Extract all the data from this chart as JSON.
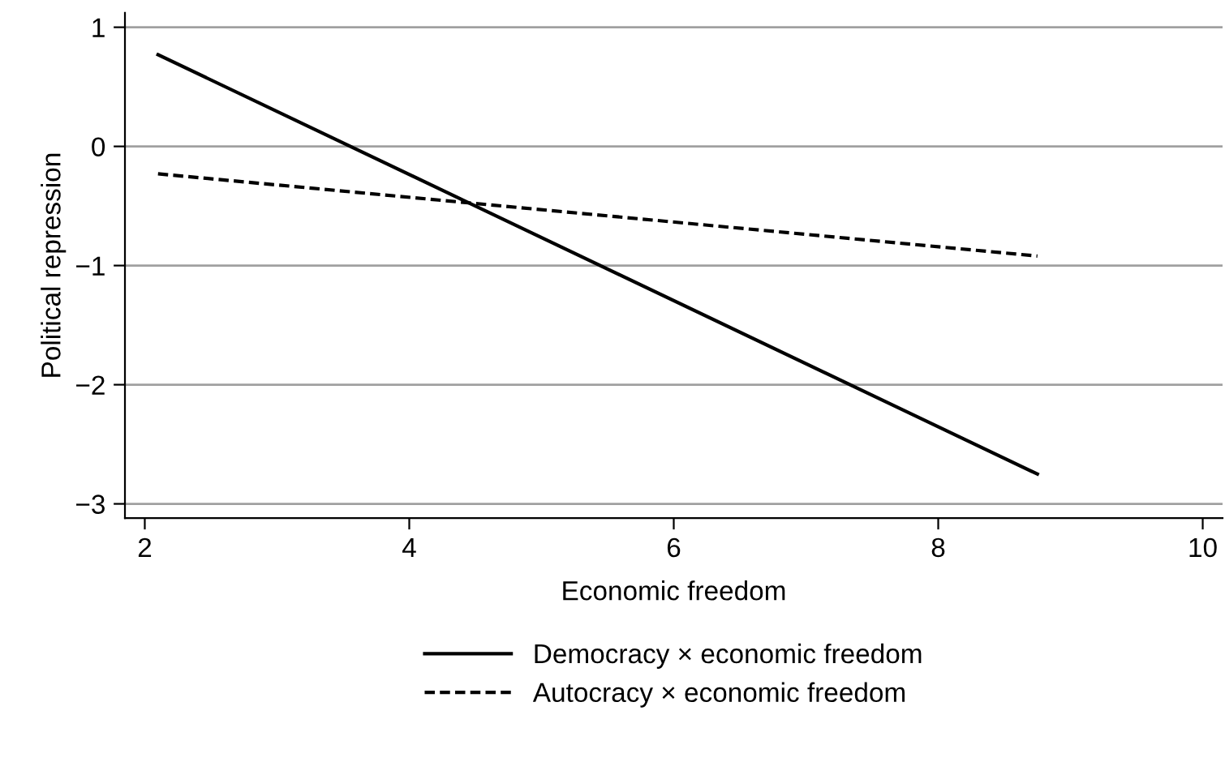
{
  "chart_data": {
    "type": "line",
    "xlabel": "Economic freedom",
    "ylabel": "Political repression",
    "xlim": [
      1.85,
      10.15
    ],
    "xticks": [
      2,
      4,
      6,
      8,
      10
    ],
    "ylim": [
      -3.12,
      1.12
    ],
    "yticks": [
      {
        "value": 1,
        "label": "1"
      },
      {
        "value": 0,
        "label": "0"
      },
      {
        "value": -1,
        "label": "−1"
      },
      {
        "value": -2,
        "label": "−2"
      },
      {
        "value": -3,
        "label": "−3"
      }
    ],
    "x": [
      2.1,
      8.75
    ],
    "grid": "y",
    "legend": "bottom",
    "marker": "none",
    "series": [
      {
        "name": "Democracy × economic freedom",
        "color": "#000000",
        "line_style": "solid",
        "values": [
          0.77,
          -2.75
        ]
      },
      {
        "name": "Autocracy × economic freedom",
        "color": "#000000",
        "line_style": "dashed",
        "values": [
          -0.23,
          -0.92
        ]
      }
    ]
  }
}
